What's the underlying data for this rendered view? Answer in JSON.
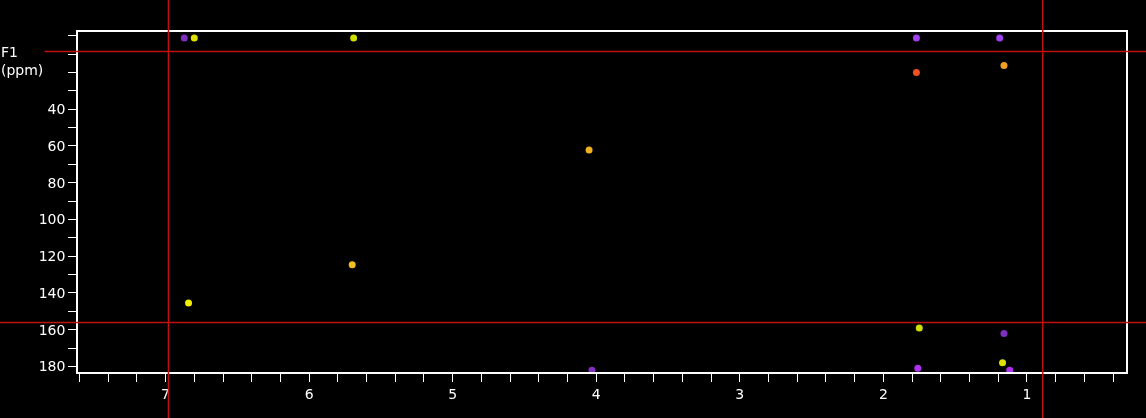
{
  "chart_data": {
    "type": "scatter",
    "ylabel": "F1\n(ppm)",
    "x": [
      6.84,
      5.7,
      4.05,
      1.77,
      1.16,
      1.77,
      1.19,
      6.8,
      6.87,
      5.69,
      1.75,
      1.16,
      1.76,
      1.17,
      1.12,
      4.03
    ],
    "values": [
      145.5,
      124.6,
      62.2,
      20.1,
      16.2,
      1.2,
      1.2,
      1.2,
      1.2,
      1.2,
      159,
      162,
      181,
      178,
      182,
      182
    ],
    "colors": [
      "#f0f000",
      "#f0c020",
      "#f0b020",
      "#f05020",
      "#f0a020",
      "#a040f0",
      "#a040f0",
      "#e0e000",
      "#8030c0",
      "#d0e000",
      "#d0e000",
      "#8030c0",
      "#b030f0",
      "#e0e000",
      "#b030f0",
      "#8030c0"
    ],
    "marker": "circle",
    "xlim": [
      7.61,
      0.31
    ],
    "ylim": [
      183,
      -2
    ],
    "xticks": [
      {
        "value": 7.6,
        "label": null
      },
      {
        "value": 7.4,
        "label": null
      },
      {
        "value": 7.2,
        "label": null
      },
      7,
      {
        "value": 6.8,
        "label": null
      },
      {
        "value": 6.6,
        "label": null
      },
      {
        "value": 6.4,
        "label": null
      },
      {
        "value": 6.2,
        "label": null
      },
      6,
      {
        "value": 5.8,
        "label": null
      },
      {
        "value": 5.6,
        "label": null
      },
      {
        "value": 5.4,
        "label": null
      },
      {
        "value": 5.2,
        "label": null
      },
      5,
      {
        "value": 4.8,
        "label": null
      },
      {
        "value": 4.6,
        "label": null
      },
      {
        "value": 4.4,
        "label": null
      },
      {
        "value": 4.2,
        "label": null
      },
      4,
      {
        "value": 3.8,
        "label": null
      },
      {
        "value": 3.6,
        "label": null
      },
      {
        "value": 3.4,
        "label": null
      },
      {
        "value": 3.2,
        "label": null
      },
      3,
      {
        "value": 2.8,
        "label": null
      },
      {
        "value": 2.6,
        "label": null
      },
      {
        "value": 2.4,
        "label": null
      },
      {
        "value": 2.2,
        "label": null
      },
      2,
      {
        "value": 1.8,
        "label": null
      },
      {
        "value": 1.6,
        "label": null
      },
      {
        "value": 1.4,
        "label": null
      },
      {
        "value": 1.2,
        "label": null
      },
      1,
      {
        "value": 0.8,
        "label": null
      },
      {
        "value": 0.6,
        "label": null
      },
      {
        "value": 0.4,
        "label": null
      }
    ],
    "yticks": [
      {
        "value": 0,
        "label": null
      },
      {
        "value": 10,
        "label": null
      },
      {
        "value": 20,
        "label": null
      },
      {
        "value": 30,
        "label": null
      },
      40,
      {
        "value": 50,
        "label": null
      },
      60,
      {
        "value": 70,
        "label": null
      },
      80,
      {
        "value": 90,
        "label": null
      },
      100,
      {
        "value": 110,
        "label": null
      },
      120,
      {
        "value": 130,
        "label": null
      },
      140,
      {
        "value": 150,
        "label": null
      },
      160,
      {
        "value": 170,
        "label": null
      },
      180
    ],
    "ref_lines": [
      {
        "axis": "x",
        "value": 6.98,
        "color": "#c01010"
      },
      {
        "axis": "x",
        "value": 0.89,
        "color": "#c01010"
      },
      {
        "axis": "y",
        "value": 8.6,
        "color": "#c01010"
      },
      {
        "axis": "y",
        "value": 156,
        "color": "#c01010"
      }
    ],
    "grid": false
  }
}
